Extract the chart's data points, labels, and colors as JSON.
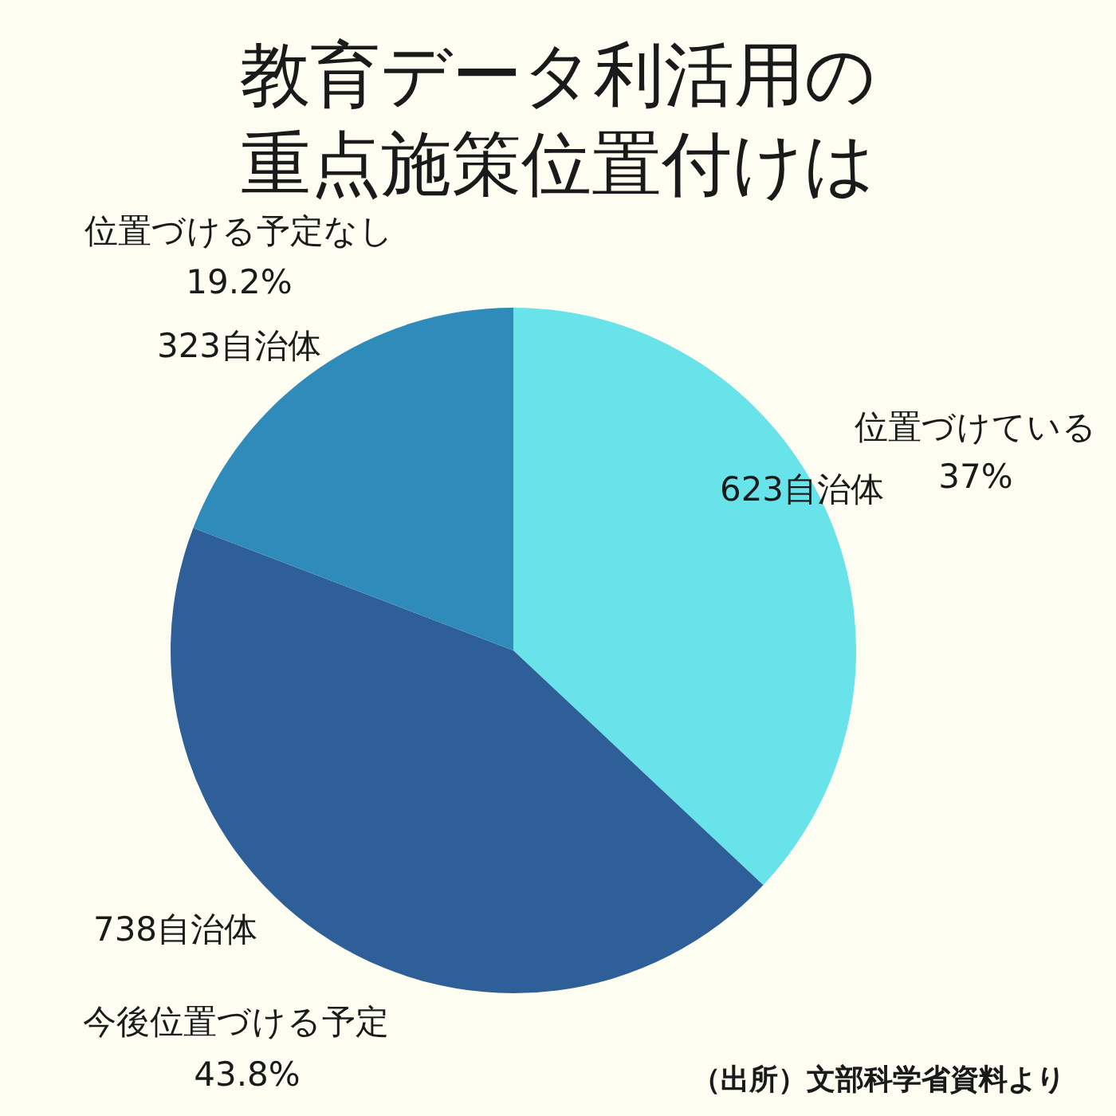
{
  "chart_data": {
    "type": "pie",
    "title": "教育データ利活用の重点施策位置付けは",
    "categories": [
      "位置づけている",
      "今後位置づける予定",
      "位置づける予定なし"
    ],
    "values": [
      623,
      738,
      323
    ],
    "value_labels": [
      "623自治体",
      "738自治体",
      "323自治体"
    ],
    "colors": [
      "#68e3e9",
      "#2f5f98",
      "#2f8bb9"
    ],
    "annotations": [
      {
        "text": "37%",
        "x": "位置づけている"
      },
      {
        "text": "43.8%",
        "x": "今後位置づける予定"
      },
      {
        "text": "19.2%",
        "x": "位置づける予定なし"
      },
      "（出所）文部科学省資料より"
    ]
  }
}
